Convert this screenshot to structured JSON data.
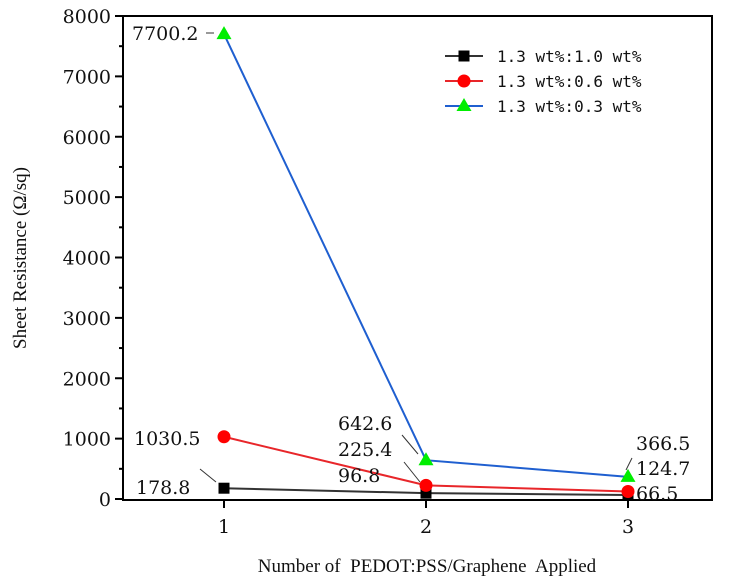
{
  "chart_data": {
    "type": "line",
    "title": "",
    "xlabel": "Number of  PEDOT:PSS/Graphene  Applied",
    "ylabel": "Sheet Resistance (Ω/sq)",
    "x": [
      1,
      2,
      3
    ],
    "xticks": [
      "1",
      "2",
      "3"
    ],
    "ylim": [
      0,
      8000
    ],
    "yticks": [
      "0",
      "1000",
      "2000",
      "3000",
      "4000",
      "5000",
      "6000",
      "7000",
      "8000"
    ],
    "grid": false,
    "legend_position": "top-right",
    "series": [
      {
        "name": "1.3 wt%:1.0 wt%",
        "values": [
          178.8,
          96.8,
          66.5
        ],
        "labels": [
          "178.8",
          "96.8",
          "66.5"
        ],
        "line_color": "#333333",
        "marker_color": "#000000",
        "marker": "square"
      },
      {
        "name": "1.3 wt%:0.6 wt%",
        "values": [
          1030.5,
          225.4,
          124.7
        ],
        "labels": [
          "1030.5",
          "225.4",
          "124.7"
        ],
        "line_color": "#e8262a",
        "marker_color": "#ff0000",
        "marker": "circle"
      },
      {
        "name": "1.3 wt%:0.3 wt%",
        "values": [
          7700.2,
          642.6,
          366.5
        ],
        "labels": [
          "7700.2",
          "642.6",
          "366.5"
        ],
        "line_color": "#1f5fd0",
        "marker_color": "#00ee00",
        "marker": "triangle"
      }
    ]
  }
}
